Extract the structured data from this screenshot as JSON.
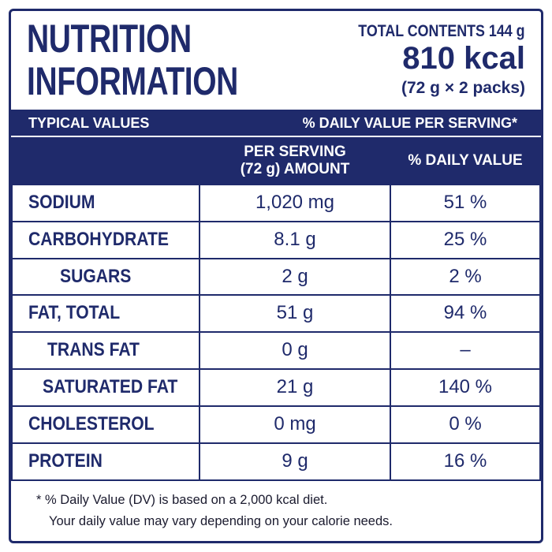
{
  "header": {
    "title": "NUTRITION INFORMATION",
    "total_contents": "TOTAL CONTENTS 144 g",
    "energy": "810 kcal",
    "packs": "(72 g × 2 packs)"
  },
  "table": {
    "bar": [
      "TYPICAL VALUES",
      "% DAILY VALUE PER SERVING*"
    ],
    "columns": [
      "PER SERVING (72 g) AMOUNT",
      "% DAILY VALUE"
    ],
    "rows": [
      [
        "SODIUM",
        "1,020 mg",
        "51 %"
      ],
      [
        "CARBOHYDRATE",
        "8.1 g",
        "25 %"
      ],
      [
        "SUGARS",
        "2 g",
        "2 %"
      ],
      [
        "FAT, TOTAL",
        "51 g",
        "94 %"
      ],
      [
        "TRANS FAT",
        "0 g",
        "–"
      ],
      [
        "SATURATED FAT",
        "21 g",
        "140 %"
      ],
      [
        "CHOLESTEROL",
        "0 mg",
        "0 %"
      ],
      [
        "PROTEIN",
        "9 g",
        "16 %"
      ]
    ]
  },
  "footnote": [
    "* % Daily Value (DV) is based on a 2,000 kcal diet.",
    "Your daily value may vary depending on your calorie needs."
  ]
}
